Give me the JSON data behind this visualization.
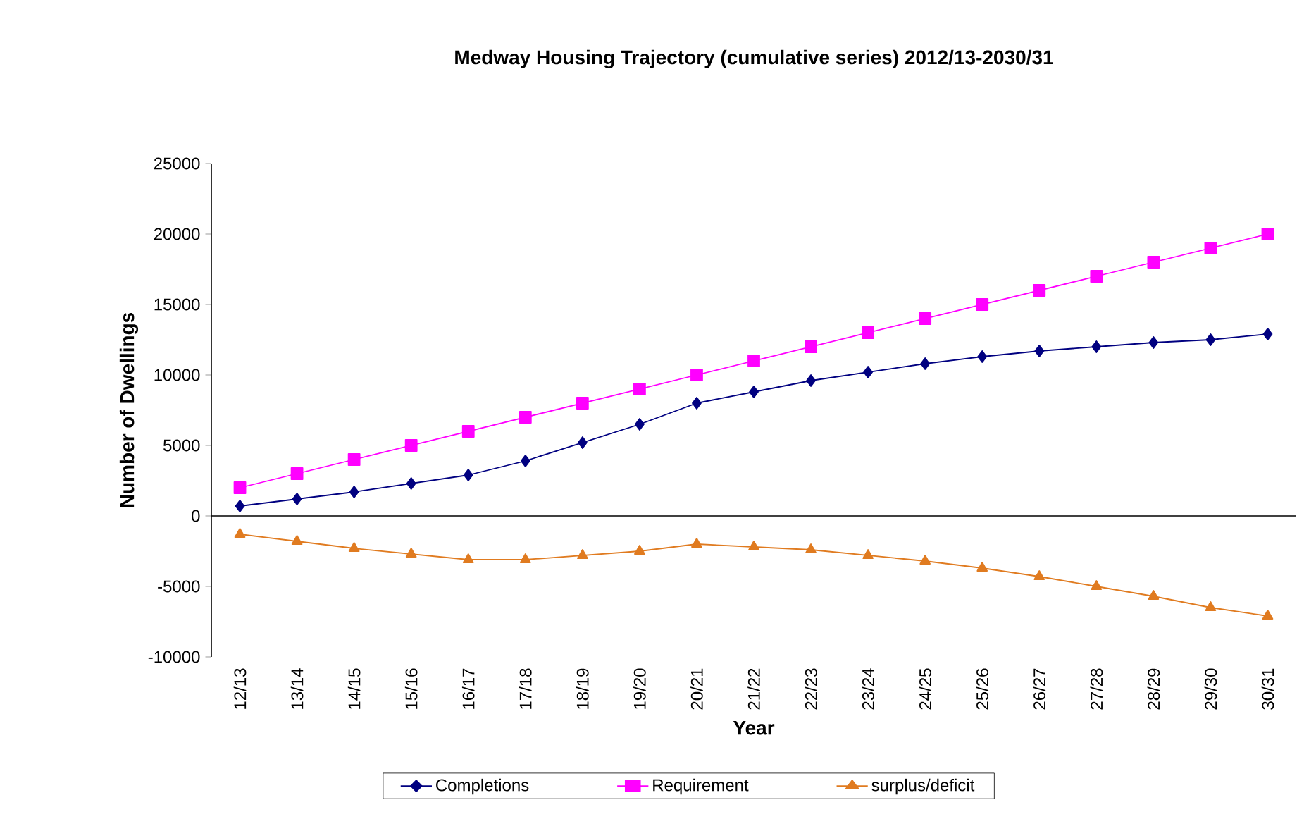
{
  "chart_data": {
    "type": "line",
    "title": "Medway Housing Trajectory (cumulative series) 2012/13-2030/31",
    "xlabel": "Year",
    "ylabel": "Number of Dwellings",
    "categories": [
      "12/13",
      "13/14",
      "14/15",
      "15/16",
      "16/17",
      "17/18",
      "18/19",
      "19/20",
      "20/21",
      "21/22",
      "22/23",
      "23/24",
      "24/25",
      "25/26",
      "26/27",
      "27/28",
      "28/29",
      "29/30",
      "30/31"
    ],
    "series": [
      {
        "name": "Completions",
        "color": "#000080",
        "marker": "diamond",
        "values": [
          700,
          1200,
          1700,
          2300,
          2900,
          3900,
          5200,
          6500,
          8000,
          8800,
          9600,
          10200,
          10800,
          11300,
          11700,
          12000,
          12300,
          12500,
          12900
        ]
      },
      {
        "name": "Requirement",
        "color": "#ff00ff",
        "marker": "square",
        "values": [
          2000,
          3000,
          4000,
          5000,
          6000,
          7000,
          8000,
          9000,
          10000,
          11000,
          12000,
          13000,
          14000,
          15000,
          16000,
          17000,
          18000,
          19000,
          20000
        ]
      },
      {
        "name": "surplus/deficit",
        "color": "#e07b20",
        "marker": "triangle",
        "values": [
          -1300,
          -1800,
          -2300,
          -2700,
          -3100,
          -3100,
          -2800,
          -2500,
          -2000,
          -2200,
          -2400,
          -2800,
          -3200,
          -3700,
          -4300,
          -5000,
          -5700,
          -6500,
          -7100
        ]
      }
    ],
    "ylim": [
      -10000,
      25000
    ],
    "yticks": [
      -10000,
      -5000,
      0,
      5000,
      10000,
      15000,
      20000,
      25000
    ],
    "ref_lines": [
      {
        "axis": "y",
        "value": 0,
        "color": "#000000"
      }
    ],
    "grid": false,
    "legend": "bottom",
    "line_style": "solid"
  }
}
